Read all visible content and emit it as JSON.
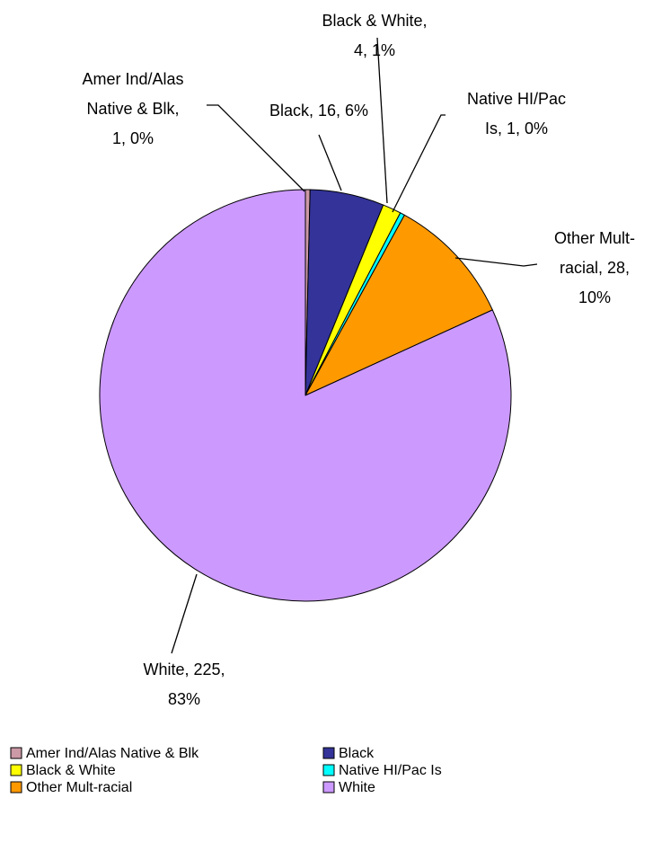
{
  "chart_data": {
    "type": "pie",
    "title": "",
    "slices": [
      {
        "name": "Amer Ind/Alas Native & Blk",
        "value": 1,
        "percent": "0%",
        "color": "#CC99A6",
        "label_lines": [
          "Amer Ind/Alas",
          "Native & Blk,",
          "1, 0%"
        ]
      },
      {
        "name": "Black",
        "value": 16,
        "percent": "6%",
        "color": "#333399",
        "label_lines": [
          "Black, 16, 6%"
        ]
      },
      {
        "name": "Black & White",
        "value": 4,
        "percent": "1%",
        "color": "#FFFF00",
        "label_lines": [
          "Black & White,",
          "4, 1%"
        ]
      },
      {
        "name": "Native HI/Pac Is",
        "value": 1,
        "percent": "0%",
        "color": "#00FFFF",
        "label_lines": [
          "Native HI/Pac",
          "Is, 1, 0%"
        ]
      },
      {
        "name": "Other Mult-racial",
        "value": 28,
        "percent": "10%",
        "color": "#FF9900",
        "label_lines": [
          "Other Mult-",
          "racial, 28,",
          "10%"
        ]
      },
      {
        "name": "White",
        "value": 225,
        "percent": "83%",
        "color": "#CC99FF",
        "label_lines": [
          "White, 225,",
          "83%"
        ]
      }
    ],
    "start_angle_deg": 0,
    "direction": "clockwise",
    "legend": {
      "position": "bottom",
      "columns": 2,
      "entries": [
        "Amer Ind/Alas Native & Blk",
        "Black",
        "Black & White",
        "Native HI/Pac Is",
        "Other Mult-racial",
        "White"
      ]
    }
  }
}
